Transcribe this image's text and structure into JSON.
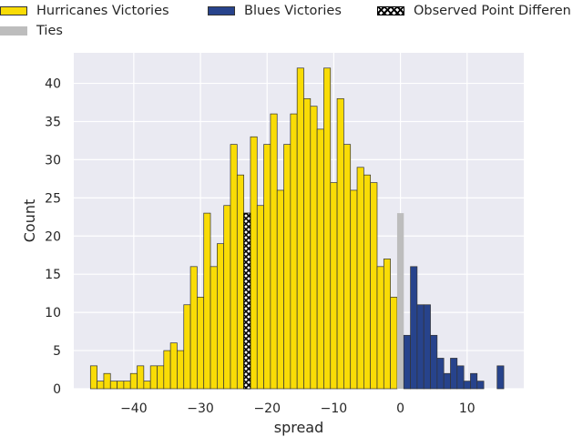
{
  "chart_data": {
    "type": "bar",
    "xlabel": "spread",
    "ylabel": "Count",
    "xlim": [
      -49,
      18.5
    ],
    "ylim": [
      0,
      44
    ],
    "xticks": [
      -40,
      -30,
      -20,
      -10,
      0,
      10
    ],
    "yticks": [
      0,
      5,
      10,
      15,
      20,
      25,
      30,
      35,
      40
    ],
    "grid": true,
    "bin_width": 1,
    "legend_placement": "top",
    "legend": [
      {
        "label": "Hurricanes Victories",
        "kind": "hurricanes"
      },
      {
        "label": "Blues Victories",
        "kind": "blues"
      },
      {
        "label": "Observed Point Differen",
        "kind": "observed"
      },
      {
        "label": "Ties",
        "kind": "ties"
      }
    ],
    "colors": {
      "hurricanes": "#f9dc06",
      "blues": "#27438c",
      "ties": "#bdbdbd",
      "edge": "#333333",
      "background": "#eaeaf2",
      "grid": "#ffffff"
    },
    "observed_point_differential": -23,
    "series": [
      {
        "name": "Hurricanes Victories",
        "x": [
          -46,
          -45,
          -44,
          -43,
          -42,
          -41,
          -40,
          -39,
          -38,
          -37,
          -36,
          -35,
          -34,
          -33,
          -32,
          -31,
          -30,
          -29,
          -28,
          -27,
          -26,
          -25,
          -24,
          -23,
          -22,
          -21,
          -20,
          -19,
          -18,
          -17,
          -16,
          -15,
          -14,
          -13,
          -12,
          -11,
          -10,
          -9,
          -8,
          -7,
          -6,
          -5,
          -4,
          -3,
          -2,
          -1
        ],
        "values": [
          3,
          1,
          2,
          1,
          1,
          1,
          2,
          3,
          1,
          3,
          3,
          5,
          6,
          5,
          11,
          16,
          12,
          23,
          16,
          19,
          24,
          32,
          28,
          23,
          33,
          24,
          32,
          36,
          26,
          32,
          36,
          42,
          38,
          37,
          34,
          42,
          27,
          38,
          32,
          26,
          29,
          28,
          27,
          16,
          17,
          12
        ]
      },
      {
        "name": "Ties",
        "x": [
          0
        ],
        "values": [
          23
        ]
      },
      {
        "name": "Blues Victories",
        "x": [
          1,
          2,
          3,
          4,
          5,
          6,
          7,
          8,
          9,
          10,
          11,
          12,
          15
        ],
        "values": [
          7,
          16,
          11,
          11,
          7,
          4,
          2,
          4,
          3,
          1,
          2,
          1,
          3
        ]
      }
    ]
  }
}
